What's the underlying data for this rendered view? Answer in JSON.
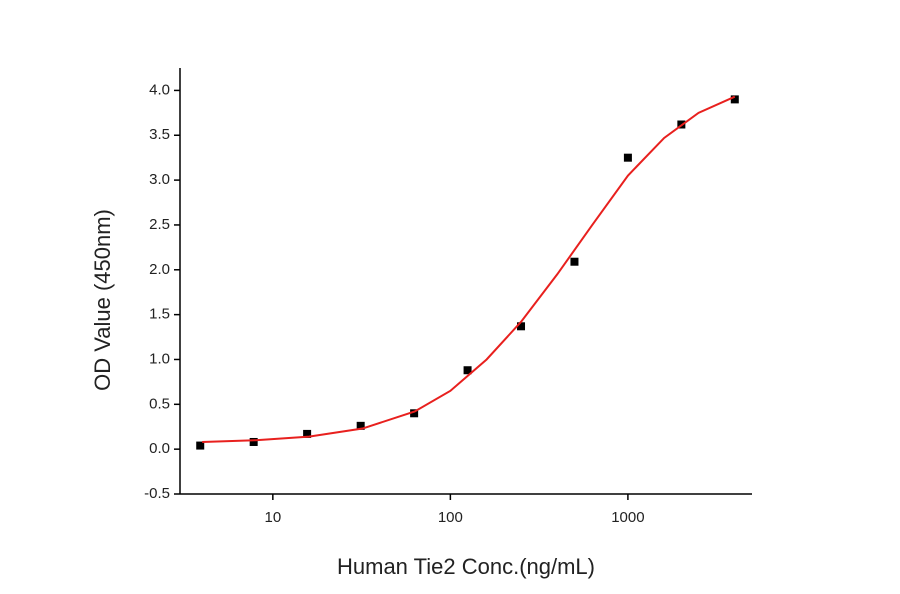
{
  "chart_data": {
    "type": "scatter",
    "x_label": "Human Tie2 Conc.(ng/mL)",
    "y_label": "OD Value (450nm)",
    "xscale": "log",
    "xlim": [
      3,
      5000
    ],
    "xticks": [
      10,
      100,
      1000
    ],
    "ylim": [
      -0.5,
      4.25
    ],
    "yticks": [
      {
        "value": -0.5,
        "label": "-0.5"
      },
      {
        "value": 0,
        "label": "0.0"
      },
      0.5,
      {
        "value": 1,
        "label": "1.0"
      },
      1.5,
      {
        "value": 2,
        "label": "2.0"
      },
      2.5,
      {
        "value": 3,
        "label": "3.0"
      },
      3.5,
      {
        "value": 4,
        "label": "4.0"
      }
    ],
    "grid": false,
    "series": [
      {
        "mode": "markers",
        "color": "#000000",
        "x": [
          3.9,
          7.8,
          15.6,
          31.25,
          62.5,
          125,
          250,
          500,
          1000,
          2000,
          4000
        ],
        "values": [
          0.04,
          0.08,
          0.17,
          0.26,
          0.4,
          0.88,
          1.37,
          2.09,
          3.25,
          3.62,
          3.9
        ]
      },
      {
        "mode": "line",
        "color": "#e8201e",
        "x": [
          4,
          8,
          16,
          32,
          63,
          100,
          160,
          250,
          400,
          630,
          1000,
          1600,
          2500,
          4000
        ],
        "values": [
          0.08,
          0.1,
          0.14,
          0.23,
          0.42,
          0.65,
          1.0,
          1.42,
          1.95,
          2.5,
          3.05,
          3.47,
          3.75,
          3.93
        ]
      }
    ]
  }
}
